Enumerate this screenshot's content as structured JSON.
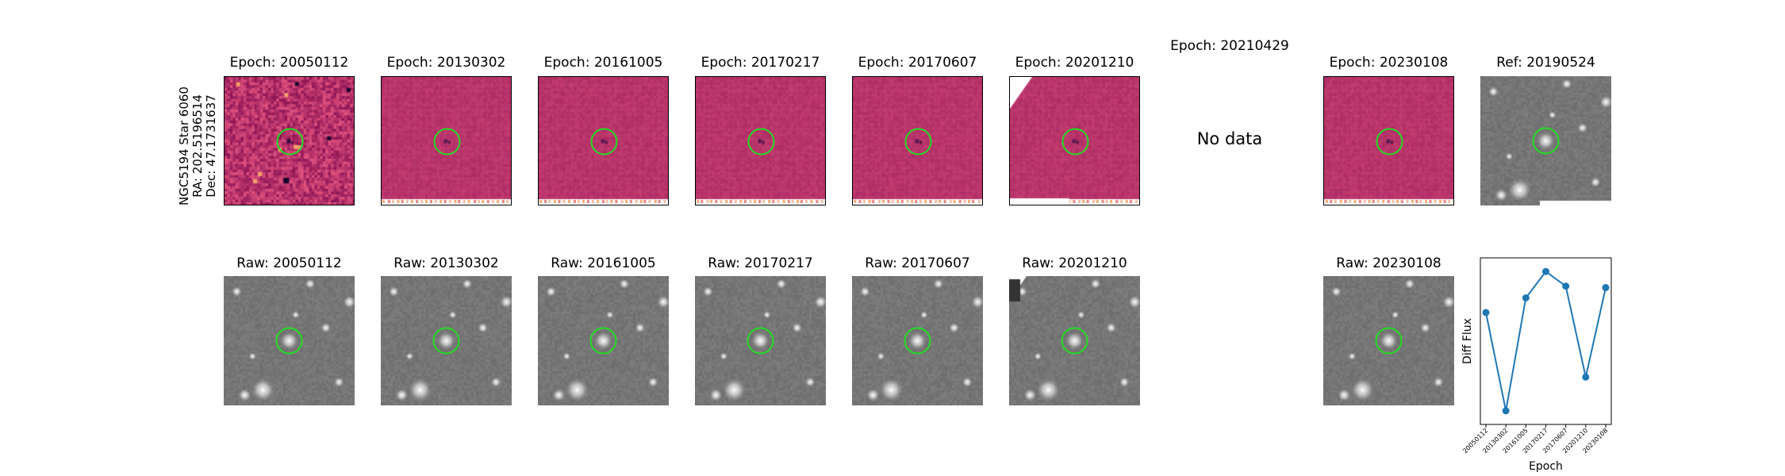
{
  "object": {
    "name": "NGC5194 Star 6060",
    "ra": "RA: 202.5196514",
    "dec": "Dec: 47.1731637"
  },
  "diff_panels": [
    {
      "title": "Epoch: 20050112",
      "has_data": true,
      "style": "noisy"
    },
    {
      "title": "Epoch: 20130302",
      "has_data": true,
      "style": "smooth"
    },
    {
      "title": "Epoch: 20161005",
      "has_data": true,
      "style": "smooth"
    },
    {
      "title": "Epoch: 20170217",
      "has_data": true,
      "style": "smooth"
    },
    {
      "title": "Epoch: 20170607",
      "has_data": true,
      "style": "smooth"
    },
    {
      "title": "Epoch: 20201210",
      "has_data": true,
      "style": "edge"
    },
    {
      "title": "Epoch: 20210429",
      "has_data": false,
      "no_data_text": "No data"
    },
    {
      "title": "Epoch: 20230108",
      "has_data": true,
      "style": "smooth"
    }
  ],
  "ref_panel": {
    "title": "Ref: 20190524"
  },
  "raw_panels": [
    {
      "title": "Raw: 20050112"
    },
    {
      "title": "Raw: 20130302"
    },
    {
      "title": "Raw: 20161005"
    },
    {
      "title": "Raw: 20170217"
    },
    {
      "title": "Raw: 20170607"
    },
    {
      "title": "Raw: 20201210"
    },
    {
      "title": "Raw: 20230108"
    }
  ],
  "colors": {
    "diff_base": "#b8336a",
    "circle": "#22dd22",
    "line": "#1f77b4"
  },
  "chart_data": {
    "type": "line",
    "xlabel": "Epoch",
    "ylabel": "Diff Flux",
    "categories": [
      "20050112",
      "20130302",
      "20161005",
      "20170217",
      "20170607",
      "20201210",
      "20230108"
    ],
    "values": [
      0.72,
      0.05,
      0.82,
      1.0,
      0.9,
      0.28,
      0.89
    ],
    "ylim": [
      0,
      1.05
    ],
    "yticks_shown": false,
    "grid": false
  }
}
